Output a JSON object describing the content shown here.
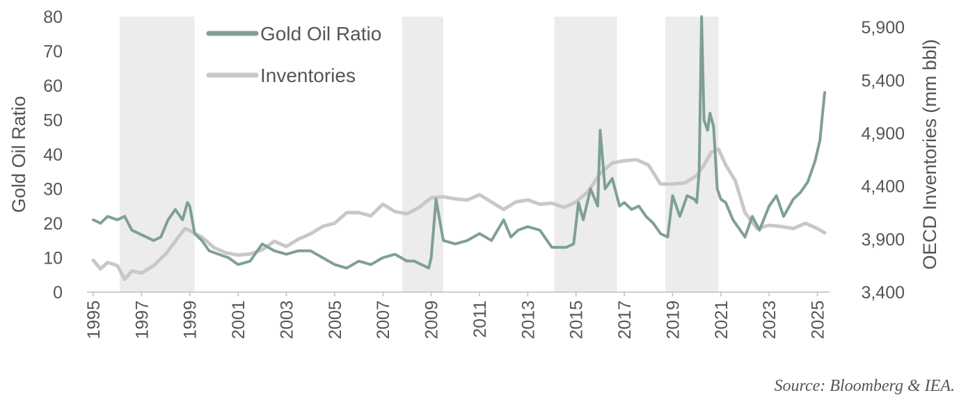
{
  "chart_data": {
    "type": "line",
    "title": "",
    "xlabel": "",
    "ylabel": "Gold Oil Ratio",
    "y2label": "OECD Inventories (mm bbl)",
    "x_range": [
      1995,
      2025.3
    ],
    "ylim": [
      0,
      80
    ],
    "y2lim": [
      3400,
      6000
    ],
    "x_ticks": [
      "1995",
      "1997",
      "1999",
      "2001",
      "2003",
      "2005",
      "2007",
      "2009",
      "2011",
      "2013",
      "2015",
      "2017",
      "2019",
      "2021",
      "2023",
      "2025"
    ],
    "y_ticks": [
      "0",
      "10",
      "20",
      "30",
      "40",
      "50",
      "60",
      "70",
      "80"
    ],
    "y2_ticks": [
      "3,400",
      "3,900",
      "4,400",
      "4,900",
      "5,400",
      "5,900"
    ],
    "legend_position": "top-left",
    "shaded_periods": [
      [
        1996.1,
        1999.2
      ],
      [
        2007.8,
        2009.5
      ],
      [
        2014.1,
        2016.7
      ],
      [
        2018.7,
        2020.9
      ]
    ],
    "series": [
      {
        "name": "Gold Oil Ratio",
        "axis": "left",
        "color": "#7e9f97",
        "x": [
          1995.0,
          1995.3,
          1995.6,
          1996.0,
          1996.3,
          1996.6,
          1996.9,
          1997.2,
          1997.5,
          1997.8,
          1998.1,
          1998.4,
          1998.7,
          1998.9,
          1999.0,
          1999.2,
          1999.5,
          1999.8,
          2000.2,
          2000.6,
          2001.0,
          2001.5,
          2002.0,
          2002.5,
          2003.0,
          2003.5,
          2004.0,
          2004.5,
          2005.0,
          2005.5,
          2006.0,
          2006.5,
          2007.0,
          2007.5,
          2008.0,
          2008.3,
          2008.6,
          2008.9,
          2009.0,
          2009.2,
          2009.5,
          2010.0,
          2010.5,
          2011.0,
          2011.5,
          2012.0,
          2012.3,
          2012.6,
          2013.0,
          2013.5,
          2014.0,
          2014.3,
          2014.6,
          2014.9,
          2015.1,
          2015.3,
          2015.6,
          2015.9,
          2016.0,
          2016.2,
          2016.5,
          2016.8,
          2017.0,
          2017.3,
          2017.6,
          2017.9,
          2018.2,
          2018.5,
          2018.8,
          2019.0,
          2019.3,
          2019.6,
          2019.9,
          2020.0,
          2020.1,
          2020.2,
          2020.3,
          2020.45,
          2020.55,
          2020.7,
          2020.85,
          2021.0,
          2021.2,
          2021.5,
          2021.8,
          2022.0,
          2022.3,
          2022.6,
          2023.0,
          2023.3,
          2023.6,
          2024.0,
          2024.3,
          2024.6,
          2024.9,
          2025.1,
          2025.3
        ],
        "values": [
          21,
          20,
          22,
          21,
          22,
          18,
          17,
          16,
          15,
          16,
          21,
          24,
          21,
          26,
          25,
          17,
          15,
          12,
          11,
          10,
          8,
          9,
          14,
          12,
          11,
          12,
          12,
          10,
          8,
          7,
          9,
          8,
          10,
          11,
          9,
          9,
          8,
          7,
          10,
          27,
          15,
          14,
          15,
          17,
          15,
          21,
          16,
          18,
          19,
          18,
          13,
          13,
          13,
          14,
          26,
          21,
          30,
          25,
          47,
          30,
          33,
          25,
          26,
          24,
          25,
          22,
          20,
          17,
          16,
          28,
          22,
          28,
          27,
          26,
          35,
          80,
          50,
          47,
          52,
          48,
          30,
          27,
          26,
          21,
          18,
          16,
          22,
          18,
          25,
          28,
          22,
          27,
          29,
          32,
          38,
          44,
          58
        ]
      },
      {
        "name": "Inventories",
        "axis": "right",
        "color": "#c8c8c8",
        "x": [
          1995.0,
          1995.3,
          1995.6,
          1996.0,
          1996.3,
          1996.6,
          1997.0,
          1997.5,
          1998.0,
          1998.5,
          1998.8,
          1999.0,
          1999.5,
          2000.0,
          2000.5,
          2001.0,
          2001.5,
          2002.0,
          2002.5,
          2003.0,
          2003.5,
          2004.0,
          2004.5,
          2005.0,
          2005.5,
          2006.0,
          2006.5,
          2007.0,
          2007.5,
          2008.0,
          2008.5,
          2009.0,
          2009.5,
          2010.0,
          2010.5,
          2011.0,
          2011.5,
          2012.0,
          2012.5,
          2013.0,
          2013.5,
          2014.0,
          2014.5,
          2015.0,
          2015.5,
          2016.0,
          2016.5,
          2017.0,
          2017.5,
          2018.0,
          2018.5,
          2019.0,
          2019.5,
          2020.0,
          2020.3,
          2020.6,
          2020.9,
          2021.2,
          2021.6,
          2022.0,
          2022.5,
          2023.0,
          2023.5,
          2024.0,
          2024.5,
          2025.0,
          2025.3
        ],
        "values": [
          3700,
          3620,
          3680,
          3650,
          3520,
          3600,
          3580,
          3650,
          3760,
          3910,
          4000,
          3980,
          3920,
          3820,
          3770,
          3750,
          3760,
          3800,
          3880,
          3830,
          3900,
          3950,
          4020,
          4050,
          4150,
          4150,
          4120,
          4230,
          4160,
          4140,
          4200,
          4290,
          4300,
          4280,
          4270,
          4320,
          4250,
          4180,
          4250,
          4270,
          4230,
          4240,
          4200,
          4250,
          4350,
          4520,
          4620,
          4640,
          4650,
          4600,
          4420,
          4420,
          4430,
          4500,
          4600,
          4720,
          4750,
          4600,
          4450,
          4150,
          4000,
          4030,
          4020,
          4000,
          4050,
          4000,
          3960
        ]
      }
    ],
    "annotation": "Source: Bloomberg & IEA."
  }
}
